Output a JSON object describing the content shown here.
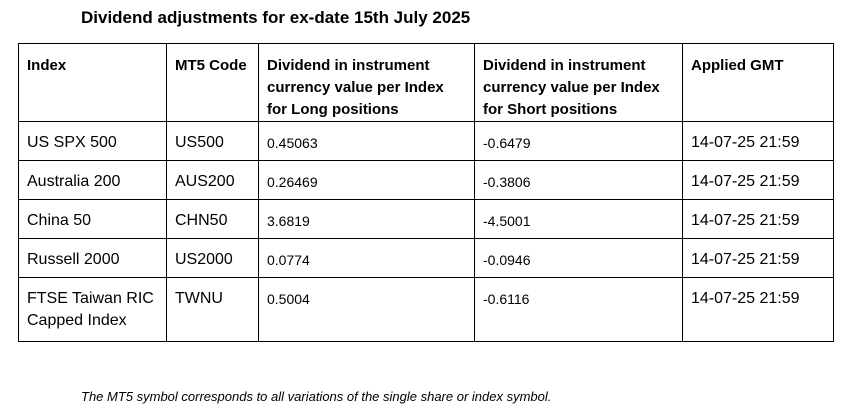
{
  "title": "Dividend adjustments for ex-date 15th July 2025",
  "table": {
    "headers": [
      "Index",
      "MT5 Code",
      "Dividend in instrument currency value per Index for Long positions",
      "Dividend in instrument currency value per Index for Short positions",
      "Applied GMT"
    ],
    "rows": [
      {
        "index": "US SPX 500",
        "code": "US500",
        "long": "0.45063",
        "short": "-0.6479",
        "applied": "14-07-25 21:59"
      },
      {
        "index": "Australia 200",
        "code": "AUS200",
        "long": "0.26469",
        "short": "-0.3806",
        "applied": "14-07-25 21:59"
      },
      {
        "index": "China 50",
        "code": "CHN50",
        "long": "3.6819",
        "short": "-4.5001",
        "applied": "14-07-25 21:59"
      },
      {
        "index": "Russell 2000",
        "code": "US2000",
        "long": "0.0774",
        "short": "-0.0946",
        "applied": "14-07-25 21:59"
      },
      {
        "index": "FTSE Taiwan RIC Capped Index",
        "code": "TWNU",
        "long": "0.5004",
        "short": "-0.6116",
        "applied": "14-07-25 21:59"
      }
    ]
  },
  "footnote": "The MT5 symbol corresponds to all variations of the single share or index symbol."
}
